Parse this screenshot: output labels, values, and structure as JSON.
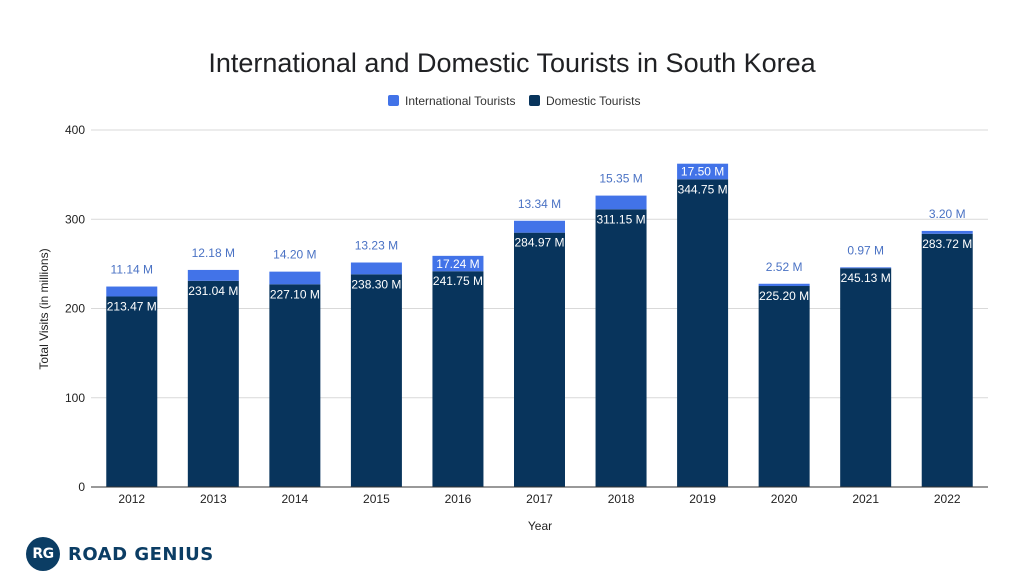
{
  "chart_data": {
    "type": "bar",
    "stacked": true,
    "title": "International and Domestic Tourists in South Korea",
    "xlabel": "Year",
    "ylabel": "Total Visits (in millions)",
    "ylim": [
      0,
      400
    ],
    "yticks": [
      0,
      100,
      200,
      300,
      400
    ],
    "grid": true,
    "legend_position": "top",
    "categories": [
      "2012",
      "2013",
      "2014",
      "2015",
      "2016",
      "2017",
      "2018",
      "2019",
      "2020",
      "2021",
      "2022"
    ],
    "series": [
      {
        "name": "Domestic Tourists",
        "color": "#08345c",
        "values": [
          213.47,
          231.04,
          227.1,
          238.3,
          241.75,
          284.97,
          311.15,
          344.75,
          225.2,
          245.13,
          283.72
        ],
        "labels": [
          "213.47 M",
          "231.04 M",
          "227.10 M",
          "238.30 M",
          "241.75 M",
          "284.97 M",
          "311.15 M",
          "344.75 M",
          "225.20 M",
          "245.13 M",
          "283.72 M"
        ]
      },
      {
        "name": "International Tourists",
        "color": "#4273e8",
        "values": [
          11.14,
          12.18,
          14.2,
          13.23,
          17.24,
          13.34,
          15.35,
          17.5,
          2.52,
          0.97,
          3.2
        ],
        "labels": [
          "11.14 M",
          "12.18 M",
          "14.20 M",
          "13.23 M",
          "17.24 M",
          "13.34 M",
          "15.35 M",
          "17.50 M",
          "2.52 M",
          "0.97 M",
          "3.20 M"
        ]
      }
    ]
  },
  "brand": {
    "logo_text": "RG",
    "name": "ROAD GENIUS",
    "color": "#0b3d64"
  }
}
